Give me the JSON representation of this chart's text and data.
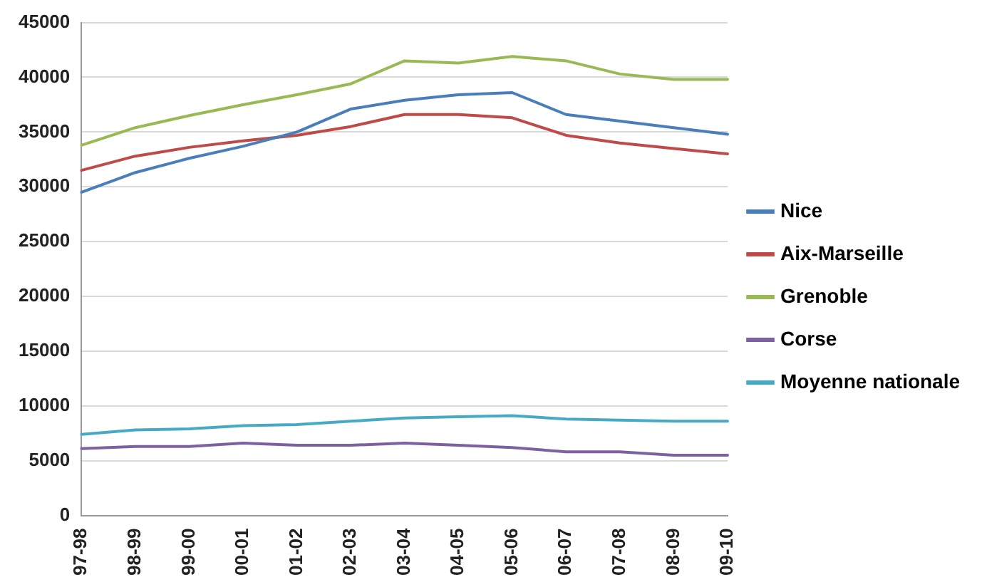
{
  "chart_data": {
    "type": "line",
    "categories": [
      "97-98",
      "98-99",
      "99-00",
      "00-01",
      "01-02",
      "02-03",
      "03-04",
      "04-05",
      "05-06",
      "06-07",
      "07-08",
      "08-09",
      "09-10"
    ],
    "series": [
      {
        "name": "Nice",
        "color": "#4a7ebb",
        "values": [
          29500,
          31300,
          32600,
          33700,
          35000,
          37100,
          37900,
          38400,
          38600,
          36600,
          36000,
          35400,
          34800
        ]
      },
      {
        "name": "Aix-Marseille",
        "color": "#be4b48",
        "values": [
          31500,
          32800,
          33600,
          34200,
          34700,
          35500,
          36600,
          36600,
          36300,
          34700,
          34000,
          33500,
          33000
        ]
      },
      {
        "name": "Grenoble",
        "color": "#98b954",
        "values": [
          33800,
          35400,
          36500,
          37500,
          38400,
          39400,
          41500,
          41300,
          41900,
          41500,
          40300,
          39800,
          39800
        ]
      },
      {
        "name": "Corse",
        "color": "#7d60a0",
        "values": [
          6100,
          6300,
          6300,
          6600,
          6400,
          6400,
          6600,
          6400,
          6200,
          5800,
          5800,
          5500,
          5500
        ]
      },
      {
        "name": "Moyenne nationale",
        "color": "#46aac5",
        "values": [
          7400,
          7800,
          7900,
          8200,
          8300,
          8600,
          8900,
          9000,
          9100,
          8800,
          8700,
          8600,
          8600
        ]
      }
    ],
    "ylim": [
      0,
      45000
    ],
    "yticks": [
      0,
      5000,
      10000,
      15000,
      20000,
      25000,
      30000,
      35000,
      40000,
      45000
    ],
    "grid": "y",
    "legend": "right",
    "marker": "none",
    "line_style": "solid"
  }
}
